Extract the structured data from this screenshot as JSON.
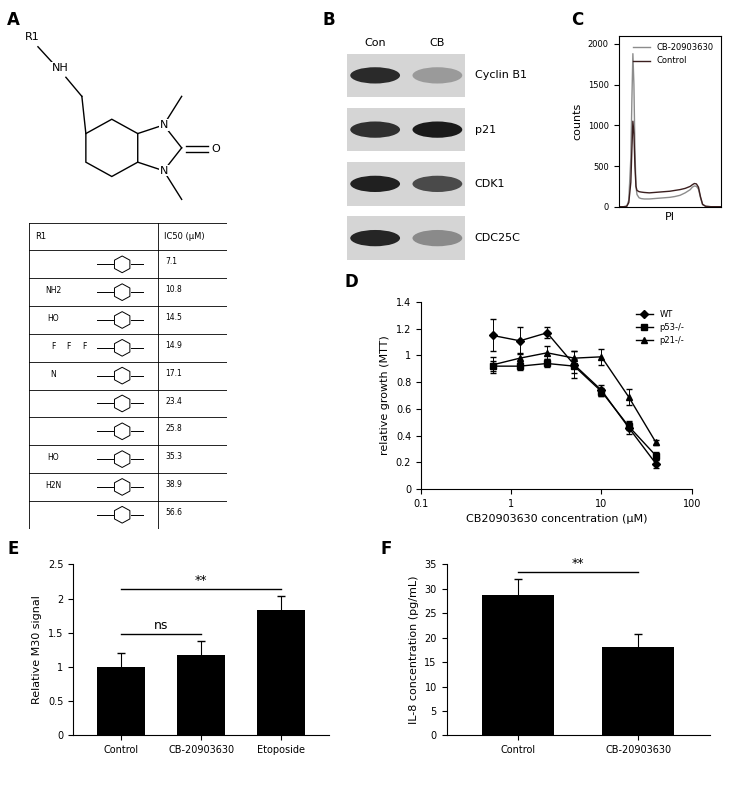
{
  "panel_labels": [
    "A",
    "B",
    "C",
    "D",
    "E",
    "F"
  ],
  "structure": {
    "atoms": [
      "R1",
      "NH",
      "N",
      "N",
      "O"
    ]
  },
  "table": {
    "header": [
      "R1",
      "IC50 (μM)"
    ],
    "rows": [
      {
        "atoms": [],
        "ic50": 7.1
      },
      {
        "atoms": [
          "NH2"
        ],
        "ic50": 10.8
      },
      {
        "atoms": [
          "HO"
        ],
        "ic50": 14.5
      },
      {
        "atoms": [
          "F",
          "F",
          "F"
        ],
        "ic50": 14.9
      },
      {
        "atoms": [
          "N"
        ],
        "ic50": 17.1
      },
      {
        "atoms": [],
        "ic50": 23.4
      },
      {
        "atoms": [],
        "ic50": 25.8
      },
      {
        "atoms": [
          "HO"
        ],
        "ic50": 35.3
      },
      {
        "atoms": [
          "H2N"
        ],
        "ic50": 38.9
      },
      {
        "atoms": [],
        "ic50": 56.6
      }
    ]
  },
  "blot": {
    "columns": [
      "Con",
      "CB"
    ],
    "rows": [
      "Cyclin B1",
      "p21",
      "CDK1",
      "CDC25C"
    ]
  },
  "chart_data": [
    {
      "type": "line",
      "xlabel": "PI",
      "ylabel": "counts",
      "x": [
        0,
        5,
        8,
        10,
        12,
        13,
        14,
        15,
        16,
        17,
        18,
        20,
        22,
        25,
        30,
        35,
        40,
        45,
        50,
        55,
        60,
        65,
        70,
        72,
        74,
        76,
        78,
        80,
        82,
        85,
        90,
        100
      ],
      "xlim": [
        0,
        100
      ],
      "ylim": [
        0,
        2100
      ],
      "yticks": [
        0,
        500,
        1000,
        1500,
        2000
      ],
      "tick_labels": "y",
      "legend": "upper right",
      "series": [
        {
          "name": "CB-20903630",
          "color": "#8c8c8c",
          "values": [
            0,
            0,
            5,
            80,
            600,
            1300,
            1880,
            1500,
            700,
            250,
            150,
            110,
            100,
            95,
            95,
            100,
            105,
            110,
            115,
            125,
            140,
            170,
            210,
            240,
            255,
            250,
            215,
            110,
            25,
            5,
            0,
            0
          ]
        },
        {
          "name": "Control",
          "color": "#3b1f1f",
          "values": [
            0,
            0,
            5,
            50,
            300,
            700,
            1050,
            900,
            500,
            250,
            200,
            185,
            180,
            175,
            170,
            175,
            180,
            185,
            190,
            200,
            210,
            225,
            250,
            270,
            285,
            280,
            240,
            120,
            30,
            5,
            0,
            0
          ]
        }
      ]
    },
    {
      "type": "line",
      "xlabel": "CB20903630 concentration (μM)",
      "ylabel": "relative growth (MTT)",
      "log": "x",
      "x": [
        0.625,
        1.25,
        2.5,
        5,
        10,
        20,
        40
      ],
      "xlim": [
        0.1,
        100
      ],
      "xticks": [
        0.1,
        1,
        10,
        100
      ],
      "ylim": [
        0,
        1.4
      ],
      "yticks": [
        0,
        0.2,
        0.4,
        0.6,
        0.8,
        1,
        1.2,
        1.4
      ],
      "legend": "upper right",
      "series": [
        {
          "name": "WT",
          "color": "#000000",
          "marker": "diamond",
          "values": [
            1.15,
            1.11,
            1.17,
            0.93,
            0.74,
            0.46,
            0.19
          ],
          "errors": [
            0.12,
            0.1,
            0.04,
            0.1,
            0.04,
            0.05,
            0.03
          ]
        },
        {
          "name": "p53-/-",
          "color": "#000000",
          "marker": "square",
          "values": [
            0.92,
            0.92,
            0.94,
            0.92,
            0.73,
            0.47,
            0.25
          ],
          "errors": [
            0.04,
            0.03,
            0.03,
            0.05,
            0.03,
            0.03,
            0.03
          ]
        },
        {
          "name": "p21-/-",
          "color": "#000000",
          "marker": "triangle",
          "values": [
            0.93,
            0.98,
            1.02,
            0.98,
            0.99,
            0.69,
            0.35
          ],
          "errors": [
            0.06,
            0.04,
            0.05,
            0.05,
            0.06,
            0.06,
            0.02
          ]
        }
      ]
    },
    {
      "type": "bar",
      "ylabel": "Relative M30 signal",
      "categories": [
        "Control",
        "CB-20903630",
        "Etoposide"
      ],
      "values": [
        1,
        1.17,
        1.84
      ],
      "errors": [
        0.2,
        0.21,
        0.2
      ],
      "color": "#000000",
      "ylim": [
        0,
        2.5
      ],
      "yticks": [
        0,
        0.5,
        1,
        1.5,
        2,
        2.5
      ],
      "annotations": [
        {
          "text": "ns",
          "from": "Control",
          "to": "CB-20903630"
        },
        {
          "text": "**",
          "from": "Control",
          "to": "Etoposide"
        }
      ]
    },
    {
      "type": "bar",
      "ylabel": "IL-8 concentration (pg/mL)",
      "categories": [
        "Control",
        "CB-20903630"
      ],
      "values": [
        28.8,
        18.1
      ],
      "errors": [
        3.3,
        2.6
      ],
      "color": "#000000",
      "ylim": [
        0,
        35
      ],
      "yticks": [
        0,
        5,
        10,
        15,
        20,
        25,
        30,
        35
      ],
      "annotations": [
        {
          "text": "**",
          "from": "Control",
          "to": "CB-20903630"
        }
      ]
    }
  ]
}
